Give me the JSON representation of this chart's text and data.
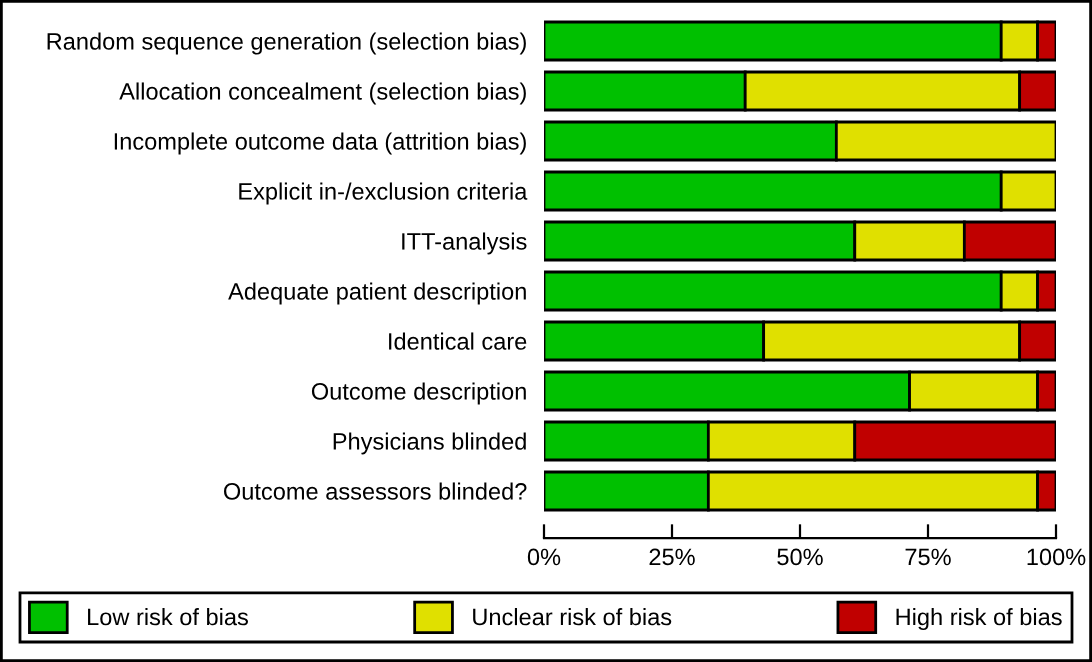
{
  "chart_data": {
    "type": "bar",
    "orientation": "horizontal",
    "stacked": true,
    "categories": [
      "Random sequence generation (selection bias)",
      "Allocation concealment (selection bias)",
      "Incomplete outcome data (attrition bias)",
      "Explicit in-/exclusion criteria",
      "ITT-analysis",
      "Adequate patient description",
      "Identical care",
      "Outcome description",
      "Physicians blinded",
      "Outcome assessors blinded?"
    ],
    "series": [
      {
        "name": "Low risk of bias",
        "color": "#00c000",
        "values": [
          89.3,
          39.3,
          57.1,
          89.3,
          60.7,
          89.3,
          42.9,
          71.4,
          32.1,
          32.1
        ]
      },
      {
        "name": "Unclear risk of bias",
        "color": "#e0e000",
        "values": [
          7.1,
          53.6,
          42.9,
          10.7,
          21.4,
          7.1,
          50.0,
          25.0,
          28.6,
          64.3
        ]
      },
      {
        "name": "High risk of bias",
        "color": "#c00000",
        "values": [
          3.6,
          7.1,
          null,
          null,
          17.9,
          3.6,
          7.1,
          3.6,
          39.3,
          3.6
        ]
      }
    ],
    "xlim": [
      0,
      100
    ],
    "xticks": [
      {
        "value": 0,
        "label": "0%"
      },
      {
        "value": 25,
        "label": "25%"
      },
      {
        "value": 50,
        "label": "50%"
      },
      {
        "value": 75,
        "label": "75%"
      },
      {
        "value": 100,
        "label": "100%"
      }
    ],
    "grid": false,
    "legend": "bottom"
  }
}
